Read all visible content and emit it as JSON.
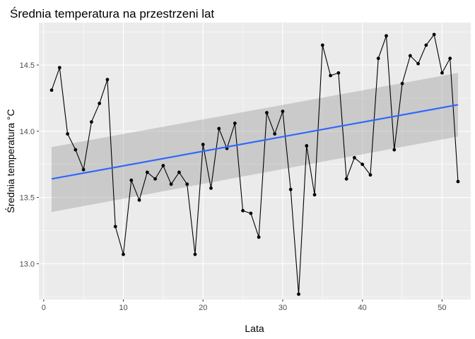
{
  "chart_data": {
    "type": "line",
    "title": "Średnia temperatura na przestrzeni lat",
    "xlabel": "Lata",
    "ylabel": "Średnia temperatura °C",
    "xlim": [
      -0.6,
      53.6
    ],
    "ylim": [
      12.73,
      14.82
    ],
    "x_ticks": [
      0,
      10,
      20,
      30,
      40,
      50
    ],
    "y_ticks": [
      13.0,
      13.5,
      14.0,
      14.5
    ],
    "x_tick_labels": [
      "0",
      "10",
      "20",
      "30",
      "40",
      "50"
    ],
    "y_tick_labels": [
      "13.0",
      "13.5",
      "14.0",
      "14.5"
    ],
    "grid": true,
    "series": [
      {
        "x": [
          1,
          2,
          3,
          4,
          5,
          6,
          7,
          8,
          9,
          10,
          11,
          12,
          13,
          14,
          15,
          16,
          17,
          18,
          19,
          20,
          21,
          22,
          23,
          24,
          25,
          26,
          27,
          28,
          29,
          30,
          31,
          32,
          33,
          34,
          35,
          36,
          37,
          38,
          39,
          40,
          41,
          42,
          43,
          44,
          45,
          46,
          47,
          48,
          49,
          50,
          51,
          52
        ],
        "values": [
          14.31,
          14.48,
          13.98,
          13.86,
          13.71,
          14.07,
          14.21,
          14.39,
          13.28,
          13.07,
          13.63,
          13.48,
          13.69,
          13.64,
          13.74,
          13.6,
          13.69,
          13.6,
          13.07,
          13.9,
          13.57,
          14.02,
          13.87,
          14.06,
          13.4,
          13.38,
          13.2,
          14.14,
          13.98,
          14.15,
          13.56,
          12.77,
          13.89,
          13.52,
          14.65,
          14.42,
          14.44,
          13.64,
          13.8,
          13.75,
          13.67,
          14.55,
          14.72,
          13.86,
          14.36,
          14.57,
          14.51,
          14.65,
          14.73,
          14.44,
          14.55,
          13.62
        ],
        "color": "#000000"
      }
    ],
    "trend": {
      "method": "linear",
      "x": [
        1,
        52
      ],
      "values": [
        13.64,
        14.2
      ],
      "ci_lower": [
        13.39,
        13.96
      ],
      "ci_upper": [
        13.88,
        14.44
      ],
      "color": "#3366FF",
      "band_color": "#999999"
    },
    "panel_background": "#EBEBEB",
    "grid_color": "#FFFFFF"
  }
}
